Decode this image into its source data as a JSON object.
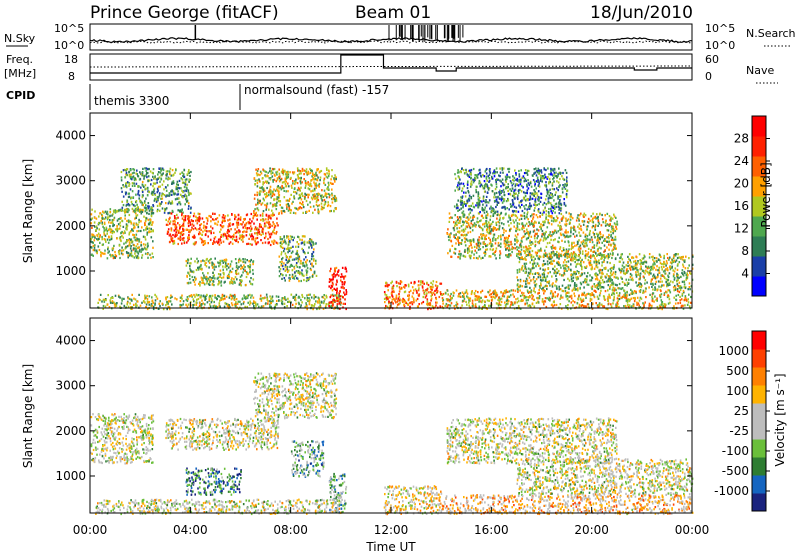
{
  "header": {
    "station": "Prince George (fitACF)",
    "beam": "Beam 01",
    "date": "18/Jun/2010"
  },
  "noise_panel": {
    "left_label": "N.Sky",
    "left_ticks": [
      "10^5",
      "10^0"
    ],
    "right_ticks": [
      "10^5",
      "10^0"
    ],
    "right_label": "N.Search"
  },
  "freq_panel": {
    "left_label_top": "Freq.",
    "left_label_bottom": "[MHz]",
    "left_ticks": [
      "18",
      "8"
    ],
    "right_ticks": [
      "60",
      "0"
    ],
    "right_label": "Nave"
  },
  "cpid": {
    "label": "CPID",
    "modes": [
      "themis 3300",
      "normalsound (fast) -157"
    ]
  },
  "colors": {
    "power": [
      "#0000ff",
      "#1a3fa8",
      "#2e7d55",
      "#4fa84f",
      "#b0c820",
      "#ffa000",
      "#ff6000",
      "#ff2000",
      "#ff0000"
    ],
    "velocity": [
      "#1a237e",
      "#1565c0",
      "#2e7d32",
      "#6abf3a",
      "#bdbdbd",
      "#bdbdbd",
      "#ffb300",
      "#ff8000",
      "#ff4000",
      "#ff0000"
    ]
  },
  "chart_data": [
    {
      "type": "heatmap",
      "name": "Power",
      "ylabel": "Slant Range [km]",
      "ylim": [
        180,
        4500
      ],
      "yticks": [
        1000,
        2000,
        3000,
        4000
      ],
      "xlim": [
        0,
        24
      ],
      "colorbar": {
        "label": "Power [dB]",
        "ticks": [
          4,
          8,
          12,
          16,
          20,
          24,
          28
        ]
      },
      "regions": [
        {
          "t0": 0.0,
          "t1": 2.5,
          "r0": 1300,
          "r1": 2400,
          "level": 0.45
        },
        {
          "t0": 1.2,
          "t1": 4.0,
          "r0": 2300,
          "r1": 3300,
          "level": 0.35
        },
        {
          "t0": 3.0,
          "t1": 7.5,
          "r0": 1600,
          "r1": 2300,
          "level": 0.75
        },
        {
          "t0": 6.5,
          "t1": 9.8,
          "r0": 2300,
          "r1": 3300,
          "level": 0.5
        },
        {
          "t0": 3.8,
          "t1": 6.5,
          "r0": 700,
          "r1": 1300,
          "level": 0.45
        },
        {
          "t0": 7.5,
          "t1": 9.0,
          "r0": 800,
          "r1": 1800,
          "level": 0.4
        },
        {
          "t0": 0.2,
          "t1": 10.0,
          "r0": 180,
          "r1": 500,
          "level": 0.45
        },
        {
          "t0": 9.5,
          "t1": 10.2,
          "r0": 180,
          "r1": 1100,
          "level": 0.85
        },
        {
          "t0": 11.7,
          "t1": 14.0,
          "r0": 180,
          "r1": 800,
          "level": 0.7
        },
        {
          "t0": 14.2,
          "t1": 21.0,
          "r0": 1300,
          "r1": 2300,
          "level": 0.5
        },
        {
          "t0": 17.0,
          "t1": 24.0,
          "r0": 600,
          "r1": 1400,
          "level": 0.45
        },
        {
          "t0": 14.0,
          "t1": 24.0,
          "r0": 180,
          "r1": 600,
          "level": 0.55
        },
        {
          "t0": 14.5,
          "t1": 19.0,
          "r0": 2300,
          "r1": 3300,
          "level": 0.3
        }
      ]
    },
    {
      "type": "heatmap",
      "name": "Velocity",
      "ylabel": "Slant Range [km]",
      "ylim": [
        180,
        4500
      ],
      "yticks": [
        1000,
        2000,
        3000,
        4000
      ],
      "xlim": [
        0,
        24
      ],
      "xlabel": "Time UT",
      "xticks": [
        "00:00",
        "04:00",
        "08:00",
        "12:00",
        "16:00",
        "20:00",
        "00:00"
      ],
      "colorbar": {
        "label": "Velocity [m s⁻¹]",
        "ticks": [
          "1000",
          "500",
          "100",
          "25",
          "-25",
          "-100",
          "-500",
          "-1000"
        ]
      },
      "regions": [
        {
          "t0": 0.0,
          "t1": 2.5,
          "r0": 1300,
          "r1": 2400,
          "level": 0.5
        },
        {
          "t0": 3.0,
          "t1": 7.5,
          "r0": 1600,
          "r1": 2300,
          "level": 0.5
        },
        {
          "t0": 6.5,
          "t1": 9.8,
          "r0": 2300,
          "r1": 3300,
          "level": 0.5
        },
        {
          "t0": 3.8,
          "t1": 6.0,
          "r0": 600,
          "r1": 1200,
          "level": 0.22
        },
        {
          "t0": 8.0,
          "t1": 9.3,
          "r0": 1000,
          "r1": 1800,
          "level": 0.3
        },
        {
          "t0": 9.5,
          "t1": 10.2,
          "r0": 180,
          "r1": 1100,
          "level": 0.35
        },
        {
          "t0": 0.2,
          "t1": 10.0,
          "r0": 180,
          "r1": 500,
          "level": 0.5
        },
        {
          "t0": 11.7,
          "t1": 14.0,
          "r0": 180,
          "r1": 800,
          "level": 0.55
        },
        {
          "t0": 14.2,
          "t1": 21.0,
          "r0": 1300,
          "r1": 2300,
          "level": 0.5
        },
        {
          "t0": 17.0,
          "t1": 24.0,
          "r0": 600,
          "r1": 1400,
          "level": 0.5
        },
        {
          "t0": 14.0,
          "t1": 24.0,
          "r0": 180,
          "r1": 600,
          "level": 0.62
        }
      ]
    }
  ]
}
